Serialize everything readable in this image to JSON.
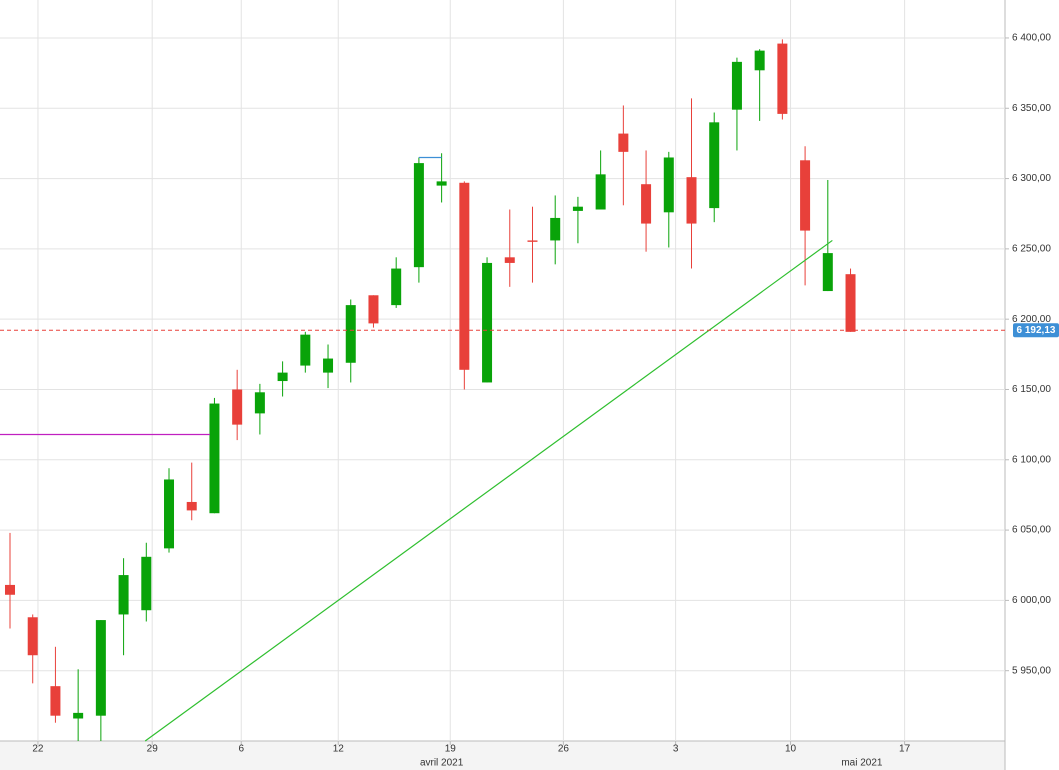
{
  "chart_data": {
    "type": "candlestick",
    "open": [
      6011,
      5988,
      5939,
      5916,
      5918,
      5990,
      5993,
      6037,
      6070,
      6062,
      6150,
      6133,
      6156,
      6167,
      6162,
      6169,
      6217,
      6210,
      6237,
      6295,
      6297,
      6155,
      6244,
      6256,
      6256,
      6277,
      6278,
      6332,
      6296,
      6276,
      6301,
      6279,
      6349,
      6377,
      6396,
      6313,
      6220,
      6232
    ],
    "high": [
      6048,
      5990,
      5967,
      5951,
      5986,
      6030,
      6041,
      6094,
      6098,
      6144,
      6164,
      6154,
      6170,
      6191,
      6182,
      6214,
      6217,
      6244,
      6315,
      6318,
      6298,
      6244,
      6278,
      6280,
      6288,
      6287,
      6320,
      6352,
      6320,
      6319,
      6357,
      6347,
      6386,
      6392,
      6399,
      6323,
      6299,
      6236
    ],
    "low": [
      5980,
      5941,
      5913,
      5900,
      5900,
      5961,
      5985,
      6034,
      6057,
      6062,
      6114,
      6118,
      6145,
      6162,
      6151,
      6155,
      6194,
      6208,
      6226,
      6283,
      6150,
      6155,
      6223,
      6226,
      6239,
      6254,
      6278,
      6281,
      6248,
      6251,
      6236,
      6269,
      6320,
      6341,
      6342,
      6224,
      6220,
      6191
    ],
    "close": [
      6004,
      5961,
      5918,
      5920,
      5986,
      6018,
      6031,
      6086,
      6064,
      6140,
      6125,
      6148,
      6162,
      6189,
      6172,
      6210,
      6197,
      6236,
      6311,
      6298,
      6164,
      6240,
      6240,
      6255,
      6272,
      6280,
      6303,
      6319,
      6268,
      6315,
      6268,
      6340,
      6383,
      6391,
      6346,
      6263,
      6247,
      6191
    ],
    "up_color": "#09a309",
    "down_color": "#e8403a",
    "xlim": [
      -0.44,
      43.8
    ],
    "ylim": [
      5900,
      6427
    ],
    "yticks": [
      {
        "value": 5950,
        "label": "5 950,00"
      },
      {
        "value": 6000,
        "label": "6 000,00"
      },
      {
        "value": 6050,
        "label": "6 050,00"
      },
      {
        "value": 6100,
        "label": "6 100,00"
      },
      {
        "value": 6150,
        "label": "6 150,00"
      },
      {
        "value": 6200,
        "label": "6 200,00"
      },
      {
        "value": 6250,
        "label": "6 250,00"
      },
      {
        "value": 6300,
        "label": "6 300,00"
      },
      {
        "value": 6350,
        "label": "6 350,00"
      },
      {
        "value": 6400,
        "label": "6 400,00"
      }
    ],
    "xticks": [
      {
        "value": 1.23,
        "label": "22"
      },
      {
        "value": 6.26,
        "label": "29"
      },
      {
        "value": 10.18,
        "label": "6"
      },
      {
        "value": 14.45,
        "label": "12"
      },
      {
        "value": 19.38,
        "label": "19"
      },
      {
        "value": 24.36,
        "label": "26"
      },
      {
        "value": 29.3,
        "label": "3"
      },
      {
        "value": 34.36,
        "label": "10"
      },
      {
        "value": 39.38,
        "label": "17"
      }
    ],
    "month_labels": [
      {
        "value": 19.0,
        "label": "avril 2021"
      },
      {
        "value": 37.5,
        "label": "mai 2021"
      }
    ],
    "grid": true,
    "last_price": {
      "value": 6192.13,
      "label": "6 192,13",
      "color": "#e8403a",
      "box_color": "#3d8fd6"
    },
    "annotations": [
      {
        "x": [
          -0.44,
          8.8
        ],
        "y": [
          6118,
          6118
        ],
        "color": "#c020c0"
      },
      {
        "x": [
          5.95,
          36.2
        ],
        "y": [
          5900,
          6256
        ],
        "color": "#2fbf2f"
      },
      {
        "x": [
          18.0,
          19.0
        ],
        "y": [
          6315,
          6315
        ],
        "color": "#3d8fd6"
      }
    ]
  }
}
